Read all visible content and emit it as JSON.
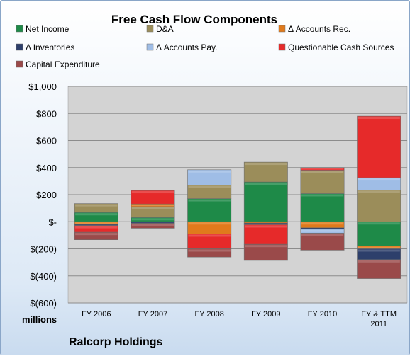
{
  "chart_data": {
    "type": "bar",
    "stacked": true,
    "title": "Free Cash Flow Components",
    "ylabel": "",
    "unit_label": "millions",
    "company": "Ralcorp Holdings",
    "categories": [
      "FY 2006",
      "FY 2007",
      "FY 2008",
      "FY 2009",
      "FY 2010",
      "FY & TTM 2011"
    ],
    "ylim": [
      -600,
      1000
    ],
    "yticks": [
      1000,
      800,
      600,
      400,
      200,
      0,
      -200,
      -400,
      -600
    ],
    "ytick_labels": [
      "$1,000",
      "$800",
      "$600",
      "$400",
      "$200",
      "$-",
      "$(200)",
      "$(400)",
      "$(600)"
    ],
    "grid": true,
    "legend_position": "top",
    "series": [
      {
        "name": "Net Income",
        "color": "#1e8a48",
        "values": [
          68,
          31,
          171,
          294,
          208,
          -180
        ]
      },
      {
        "name": "D&A",
        "color": "#9b8d5a",
        "values": [
          66,
          80,
          100,
          146,
          172,
          235
        ]
      },
      {
        "name": "Δ Accounts Rec.",
        "color": "#e07a1c",
        "values": [
          -20,
          20,
          -90,
          -10,
          -45,
          -20
        ]
      },
      {
        "name": "Δ Inventories",
        "color": "#2d3f6b",
        "values": [
          -8,
          -12,
          0,
          -12,
          -10,
          -80
        ]
      },
      {
        "name": "Δ Accounts Pay.",
        "color": "#9fbde6",
        "values": [
          0,
          0,
          113,
          0,
          -30,
          90
        ]
      },
      {
        "name": "Questionable Cash Sources",
        "color": "#e62a2a",
        "values": [
          -50,
          100,
          -110,
          -145,
          20,
          455
        ]
      },
      {
        "name": "Capital Expenditure",
        "color": "#9a4a4a",
        "values": [
          -55,
          -36,
          -61,
          -119,
          -125,
          -140
        ]
      }
    ]
  }
}
